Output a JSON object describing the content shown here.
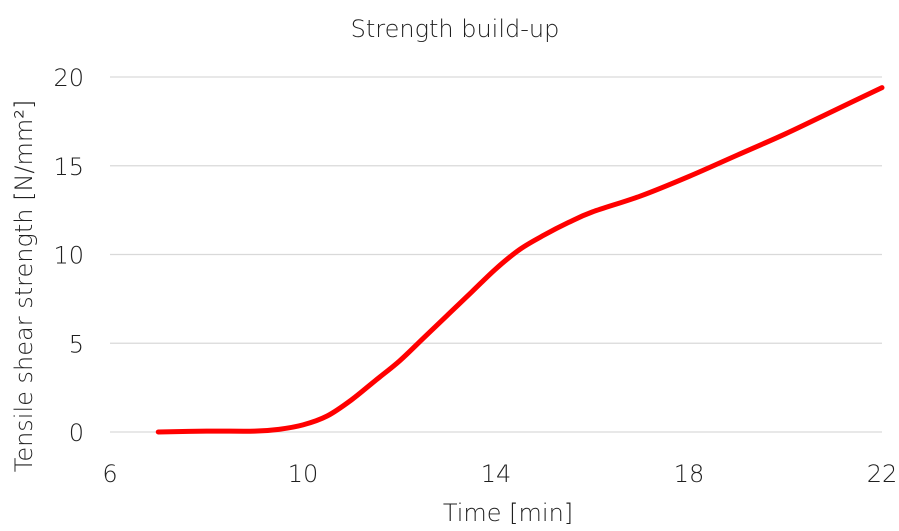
{
  "chart_data": {
    "type": "line",
    "title": "Strength build-up",
    "xlabel": "Time [min]",
    "ylabel": "Tensile shear strength [N/mm²]",
    "xlim": [
      6,
      22
    ],
    "ylim": [
      0,
      20
    ],
    "xticks": [
      6,
      10,
      14,
      18,
      22
    ],
    "yticks": [
      0,
      5,
      10,
      15,
      20
    ],
    "grid": "horizontal",
    "series": [
      {
        "color": "#ff0000",
        "x": [
          7,
          8,
          9,
          9.5,
          10,
          10.5,
          11,
          11.5,
          12,
          12.5,
          13,
          13.5,
          14,
          14.5,
          15,
          15.5,
          16,
          17,
          18,
          19,
          20,
          21,
          22
        ],
        "y": [
          0.0,
          0.05,
          0.05,
          0.15,
          0.4,
          0.9,
          1.8,
          2.9,
          4.0,
          5.3,
          6.6,
          7.9,
          9.2,
          10.3,
          11.1,
          11.8,
          12.4,
          13.3,
          14.4,
          15.6,
          16.8,
          18.1,
          19.4
        ]
      }
    ]
  }
}
